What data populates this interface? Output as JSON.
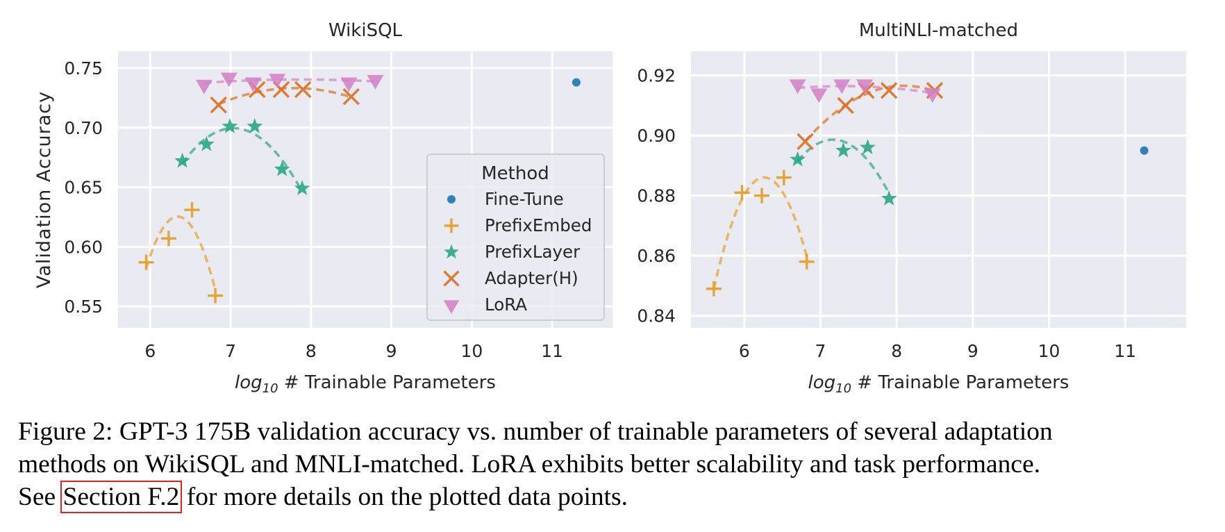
{
  "caption": {
    "line1": "Figure 2: GPT-3 175B validation accuracy vs. number of trainable parameters of several adaptation",
    "line2": "methods on WikiSQL and MNLI-matched. LoRA exhibits better scalability and task performance.",
    "line3_pre": "See ",
    "line3_link": "Section F.2",
    "line3_post": " for more details on the plotted data points."
  },
  "legend": {
    "title": "Method",
    "entries": [
      "Fine-Tune",
      "PrefixEmbed",
      "PrefixLayer",
      "Adapter(H)",
      "LoRA"
    ]
  },
  "colors": {
    "Fine-Tune": "#2b83ba",
    "PrefixEmbed": "#e69f2a",
    "PrefixLayer": "#2aa784",
    "Adapter(H)": "#de6e1d",
    "LoRA": "#d47fc6",
    "plot_bg": "#eaeaf2",
    "grid": "#ffffff"
  },
  "chart_data": [
    {
      "type": "scatter",
      "title": "WikiSQL",
      "xlabel": "log10 # Trainable Parameters",
      "ylabel": "Validation Accuracy",
      "xlim": [
        5.6,
        11.75
      ],
      "ylim": [
        0.532,
        0.764
      ],
      "xticks": [
        6,
        7,
        8,
        9,
        10,
        11
      ],
      "yticks": [
        0.55,
        0.6,
        0.65,
        0.7,
        0.75
      ],
      "ytick_labels": [
        "0.55",
        "0.60",
        "0.65",
        "0.70",
        "0.75"
      ],
      "grid": true,
      "legend_position": "center-right",
      "series": [
        {
          "name": "Fine-Tune",
          "marker": "circle",
          "fit": false,
          "x": [
            11.3
          ],
          "y": [
            0.738
          ]
        },
        {
          "name": "PrefixEmbed",
          "marker": "plus",
          "fit": true,
          "x": [
            5.95,
            6.23,
            6.52,
            6.81
          ],
          "y": [
            0.587,
            0.607,
            0.631,
            0.559
          ]
        },
        {
          "name": "PrefixLayer",
          "marker": "star",
          "fit": true,
          "x": [
            6.4,
            6.7,
            6.99,
            7.3,
            7.64,
            7.89
          ],
          "y": [
            0.672,
            0.686,
            0.701,
            0.701,
            0.665,
            0.649
          ]
        },
        {
          "name": "Adapter(H)",
          "marker": "x",
          "fit": true,
          "x": [
            6.85,
            7.33,
            7.63,
            7.9,
            8.5
          ],
          "y": [
            0.719,
            0.732,
            0.732,
            0.732,
            0.726
          ]
        },
        {
          "name": "LoRA",
          "marker": "triangle-down",
          "fit": true,
          "x": [
            6.67,
            6.98,
            7.28,
            7.58,
            8.47,
            8.8
          ],
          "y": [
            0.736,
            0.742,
            0.738,
            0.741,
            0.738,
            0.74
          ]
        }
      ]
    },
    {
      "type": "scatter",
      "title": "MultiNLI-matched",
      "xlabel": "log10 # Trainable Parameters",
      "ylabel": "",
      "xlim": [
        5.3,
        11.8
      ],
      "ylim": [
        0.836,
        0.928
      ],
      "xticks": [
        6,
        7,
        8,
        9,
        10,
        11
      ],
      "yticks": [
        0.84,
        0.86,
        0.88,
        0.9,
        0.92
      ],
      "ytick_labels": [
        "0.84",
        "0.86",
        "0.88",
        "0.90",
        "0.92"
      ],
      "grid": true,
      "legend_position": "none",
      "series": [
        {
          "name": "Fine-Tune",
          "marker": "circle",
          "fit": false,
          "x": [
            11.25
          ],
          "y": [
            0.895
          ]
        },
        {
          "name": "PrefixEmbed",
          "marker": "plus",
          "fit": true,
          "x": [
            5.6,
            5.97,
            6.23,
            6.52,
            6.82
          ],
          "y": [
            0.849,
            0.881,
            0.88,
            0.886,
            0.858
          ]
        },
        {
          "name": "PrefixLayer",
          "marker": "star",
          "fit": true,
          "x": [
            6.7,
            7.3,
            7.62,
            7.9
          ],
          "y": [
            0.892,
            0.895,
            0.896,
            0.879
          ]
        },
        {
          "name": "Adapter(H)",
          "marker": "x",
          "fit": true,
          "x": [
            6.8,
            7.33,
            7.6,
            7.9,
            8.5
          ],
          "y": [
            0.898,
            0.91,
            0.915,
            0.915,
            0.915
          ]
        },
        {
          "name": "LoRA",
          "marker": "triangle-down",
          "fit": true,
          "x": [
            6.7,
            6.98,
            7.28,
            7.58,
            8.47
          ],
          "y": [
            0.917,
            0.914,
            0.917,
            0.917,
            0.914
          ]
        }
      ]
    }
  ]
}
